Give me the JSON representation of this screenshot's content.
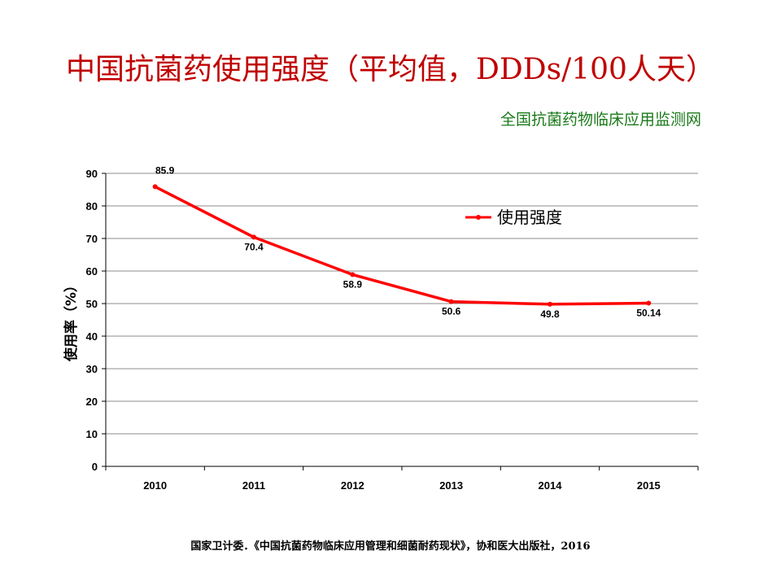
{
  "title": "中国抗菌药使用强度（平均值，DDDs/100人天）",
  "subtitle": "全国抗菌药物临床应用监测网",
  "source": "国家卫计委．《中国抗菌药物临床应用管理和细菌耐药现状》，协和医大出版社，2016",
  "colors": {
    "title": "#c00000",
    "subtitle": "#1a7a1a",
    "series": "#ff0000"
  },
  "chart_data": {
    "type": "line",
    "categories": [
      "2010",
      "2011",
      "2012",
      "2013",
      "2014",
      "2015"
    ],
    "series": [
      {
        "name": "使用强度",
        "values": [
          85.9,
          70.4,
          58.9,
          50.6,
          49.8,
          50.14
        ],
        "labels": [
          "85.9",
          "70.4",
          "58.9",
          "50.6",
          "49.8",
          "50.14"
        ]
      }
    ],
    "ylabel": "使用率（%）",
    "ylim": [
      0,
      90
    ],
    "yticks": [
      "0",
      "10",
      "20",
      "30",
      "40",
      "50",
      "60",
      "70",
      "80",
      "90"
    ],
    "grid": true,
    "legend_position": "top-right"
  }
}
